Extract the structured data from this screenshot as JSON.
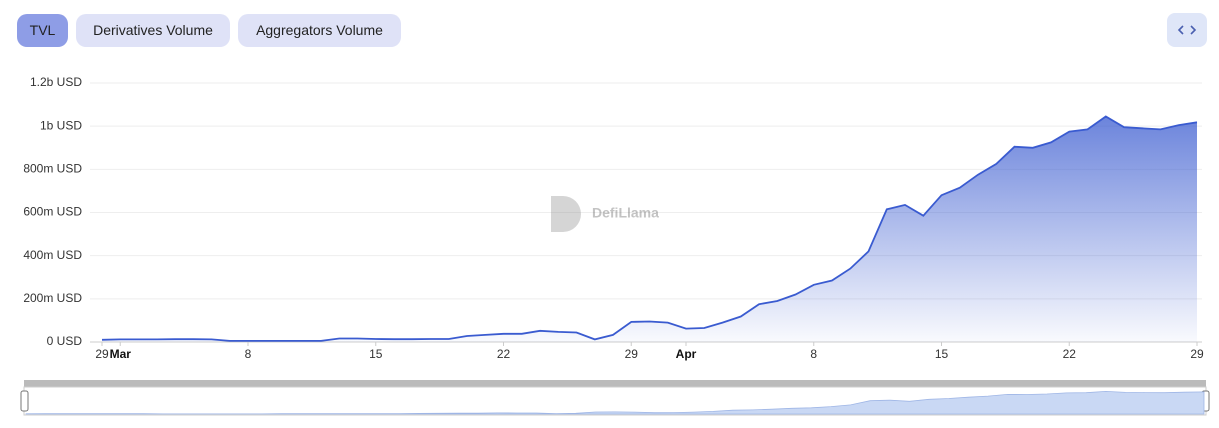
{
  "tabs": [
    "TVL",
    "Derivatives Volume",
    "Aggregators Volume"
  ],
  "watermark": "DefiLlama",
  "chart_data": {
    "type": "area",
    "color": "#3a5bd0",
    "grid": true,
    "categories": [
      "29",
      "Mar",
      null,
      null,
      null,
      null,
      null,
      null,
      "8",
      null,
      null,
      null,
      null,
      null,
      null,
      "15",
      null,
      null,
      null,
      null,
      null,
      null,
      "22",
      null,
      null,
      null,
      null,
      null,
      null,
      "29",
      null,
      null,
      "Apr",
      null,
      null,
      null,
      null,
      null,
      null,
      "8",
      null,
      null,
      null,
      null,
      null,
      null,
      "15",
      null,
      null,
      null,
      null,
      null,
      null,
      "22",
      null,
      null,
      null,
      null,
      null,
      null,
      "29"
    ],
    "values": [
      10000000,
      12000000,
      12000000,
      12000000,
      13000000,
      13000000,
      12000000,
      5000000,
      5000000,
      5000000,
      5000000,
      5000000,
      5000000,
      16000000,
      16000000,
      14000000,
      13000000,
      13000000,
      14000000,
      14000000,
      28000000,
      33000000,
      38000000,
      38000000,
      52000000,
      47000000,
      44000000,
      12000000,
      33000000,
      93000000,
      95000000,
      90000000,
      62000000,
      65000000,
      90000000,
      118000000,
      175000000,
      190000000,
      220000000,
      265000000,
      285000000,
      340000000,
      420000000,
      615000000,
      635000000,
      585000000,
      680000000,
      715000000,
      775000000,
      825000000,
      905000000,
      900000000,
      925000000,
      975000000,
      985000000,
      1045000000,
      995000000,
      990000000,
      985000000,
      1005000000,
      1018000000
    ],
    "ylim": [
      0,
      1200000000
    ],
    "yticks": [
      {
        "value": 0,
        "label": "0 USD"
      },
      {
        "value": 200000000,
        "label": "200m USD"
      },
      {
        "value": 400000000,
        "label": "400m USD"
      },
      {
        "value": 600000000,
        "label": "600m USD"
      },
      {
        "value": 800000000,
        "label": "800m USD"
      },
      {
        "value": 1000000000,
        "label": "1b USD"
      },
      {
        "value": 1200000000,
        "label": "1.2b USD"
      }
    ]
  }
}
